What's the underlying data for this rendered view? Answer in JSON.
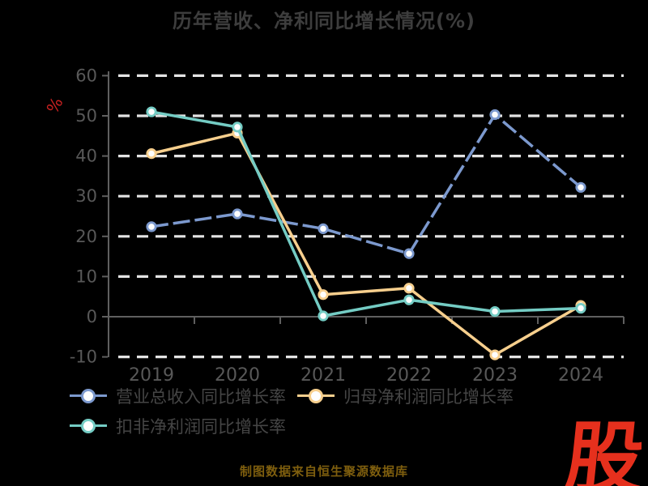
{
  "title": "历年营收、净利同比增长情况(%)",
  "footer": {
    "note": "制图数据来自恒生聚源数据库",
    "logo": "股"
  },
  "colors": {
    "background": "#000000",
    "title_text": "#3d3d3d",
    "axis_text": "#585858",
    "axis_line": "#5f5f5f",
    "gridline": "#e3e3e3",
    "legend_text": "#454545",
    "unit_label": "#c92121",
    "footer_note": "#7e5e0e",
    "logo_red": "#e6301d",
    "marker_fill": "#fdfdfd"
  },
  "chart_data": {
    "type": "line",
    "title": "历年营收、净利同比增长情况(%)",
    "categories": [
      "2019",
      "2020",
      "2021",
      "2022",
      "2023",
      "2024"
    ],
    "series": [
      {
        "name": "营业总收入同比增长率",
        "color": "#7c99ce",
        "line_style": "dashed",
        "values": [
          22.4,
          25.6,
          21.9,
          15.7,
          50.3,
          32.2
        ]
      },
      {
        "name": "归母净利润同比增长率",
        "color": "#f7cf8d",
        "line_style": "solid",
        "values": [
          40.6,
          45.7,
          5.5,
          7.1,
          -9.5,
          2.8
        ]
      },
      {
        "name": "扣非净利润同比增长率",
        "color": "#74ccc4",
        "line_style": "solid",
        "values": [
          51.0,
          47.2,
          0.2,
          4.2,
          1.3,
          2.1
        ]
      }
    ],
    "xlabel": "",
    "ylabel": "%",
    "ylim": [
      -10,
      60
    ],
    "yticks": [
      -10,
      0,
      10,
      20,
      30,
      40,
      50,
      60
    ],
    "grid": true,
    "gridline_style": "dashed",
    "legend_position": "bottom-left"
  }
}
